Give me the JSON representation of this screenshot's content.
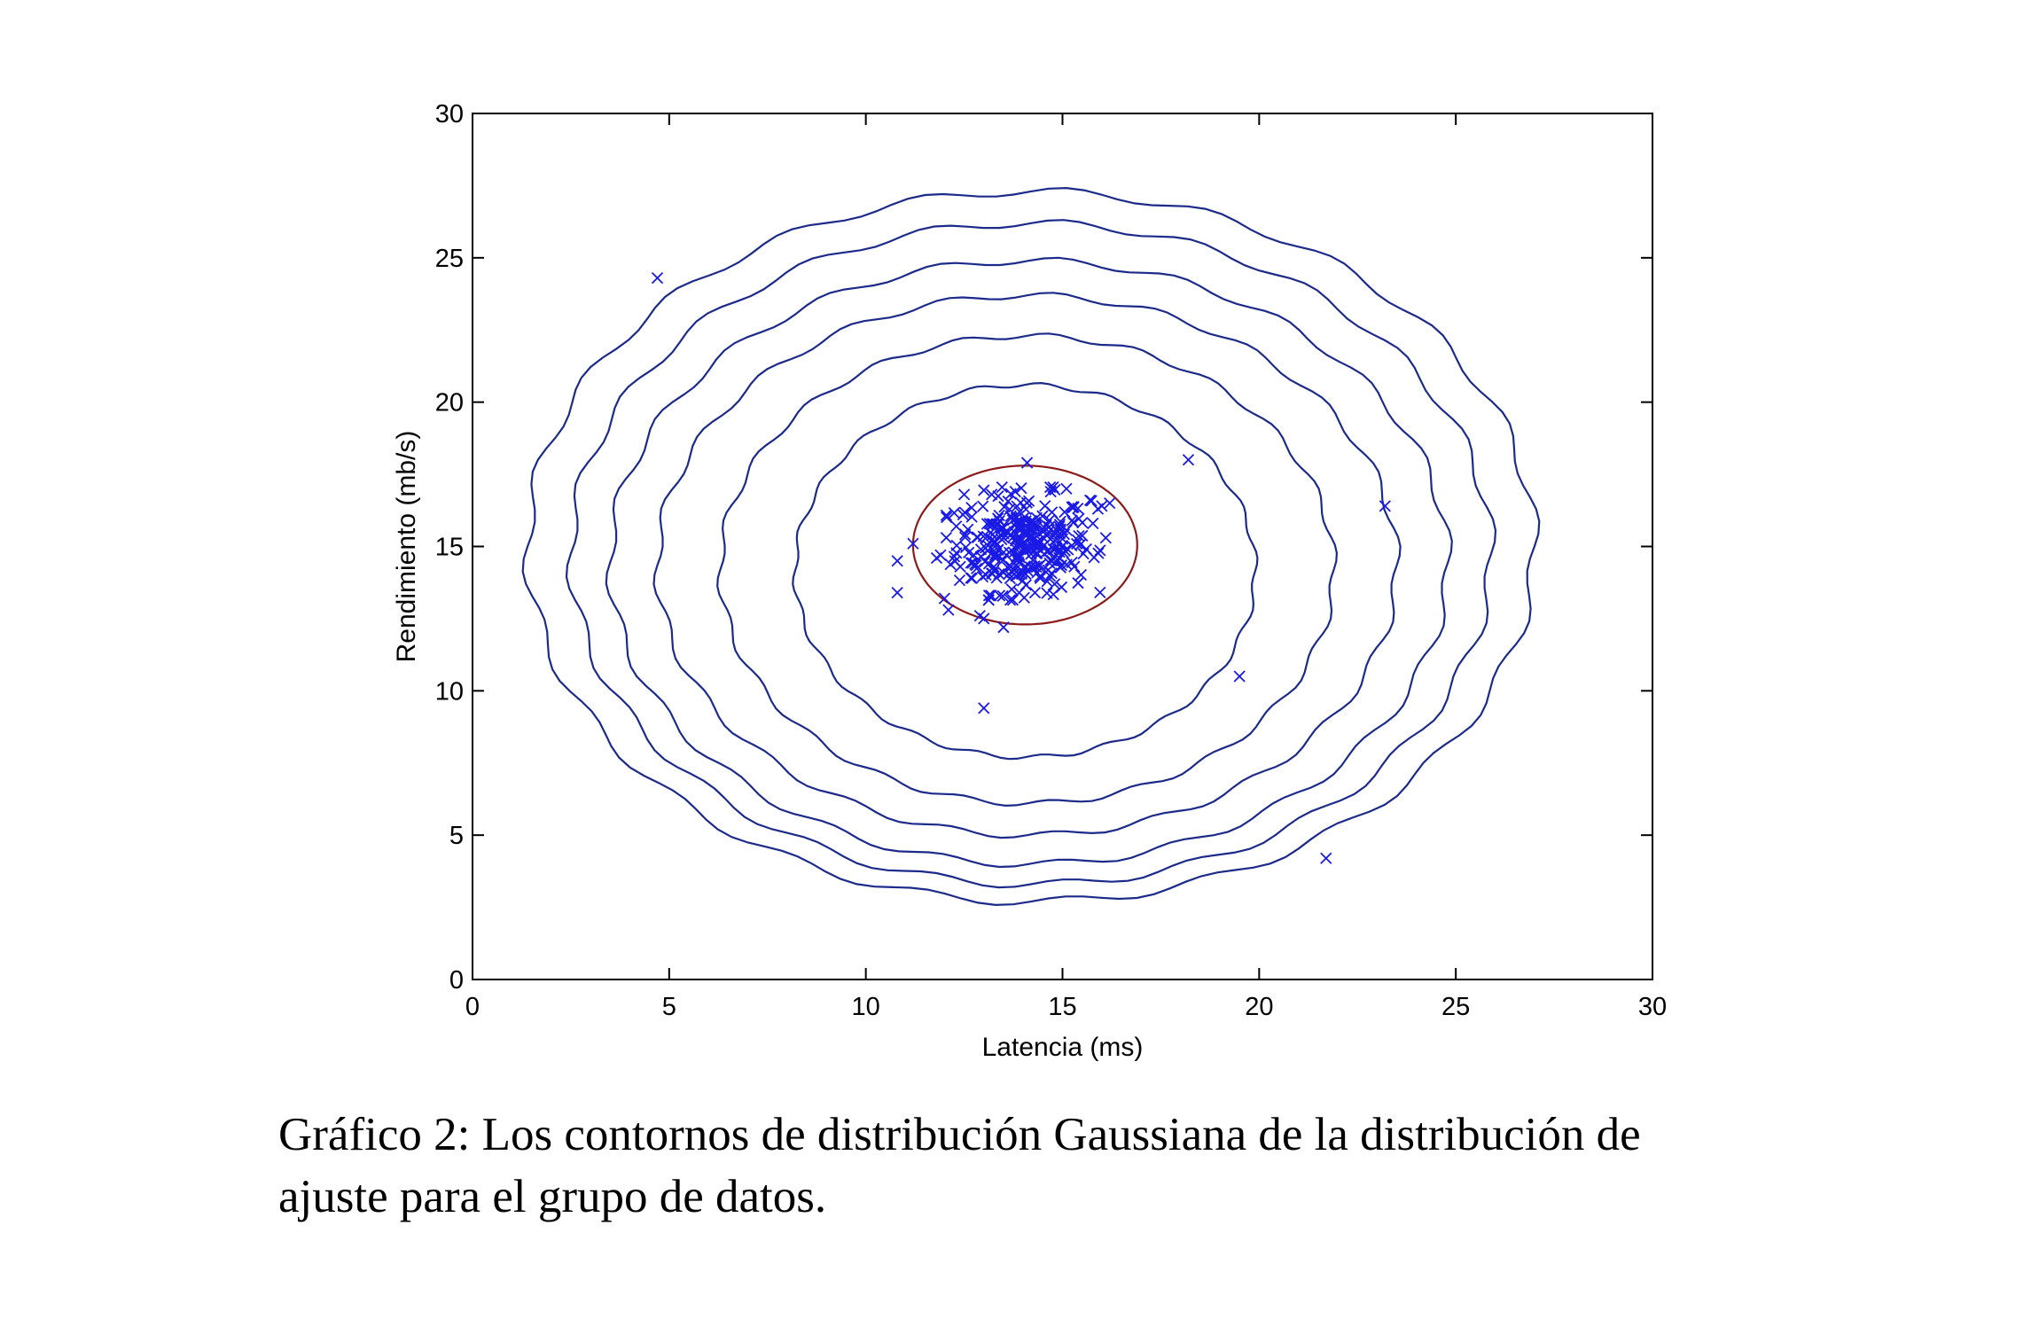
{
  "chart_data": {
    "type": "scatter",
    "title": "",
    "xlabel": "Latencia (ms)",
    "ylabel": "Rendimiento (mb/s)",
    "xlim": [
      0,
      30
    ],
    "ylim": [
      0,
      30
    ],
    "xticks": [
      0,
      5,
      10,
      15,
      20,
      25,
      30
    ],
    "yticks": [
      0,
      5,
      10,
      15,
      20,
      25,
      30
    ],
    "grid": false,
    "legend": "none",
    "colors": {
      "points": "#1a1ae6",
      "contours": "#1c2a8a",
      "threshold_contour": "#8b1a1a",
      "axes": "#000000"
    },
    "gaussian_fit": {
      "mean": [
        14.1,
        15.0
      ],
      "std": [
        1.35,
        1.35
      ]
    },
    "contours": [
      {
        "x_range": [
          11.2,
          16.9
        ],
        "y_range": [
          12.3,
          17.8
        ],
        "color": "threshold"
      },
      {
        "x_range": [
          8.2,
          19.9
        ],
        "y_range": [
          7.7,
          20.6
        ]
      },
      {
        "x_range": [
          6.3,
          21.9
        ],
        "y_range": [
          6.1,
          22.3
        ]
      },
      {
        "x_range": [
          4.7,
          23.5
        ],
        "y_range": [
          5.0,
          23.7
        ]
      },
      {
        "x_range": [
          3.5,
          24.8
        ],
        "y_range": [
          4.0,
          24.9
        ]
      },
      {
        "x_range": [
          2.5,
          25.9
        ],
        "y_range": [
          3.3,
          26.2
        ]
      },
      {
        "x_range": [
          1.4,
          27.0
        ],
        "y_range": [
          2.7,
          27.3
        ]
      }
    ],
    "cluster": {
      "center": [
        14.0,
        15.1
      ],
      "spread": [
        0.85,
        0.85
      ],
      "count": 290
    },
    "series": [
      {
        "marker": "x",
        "points": [
          [
            4.7,
            24.3
          ],
          [
            18.2,
            18.0
          ],
          [
            23.2,
            16.4
          ],
          [
            19.5,
            10.5
          ],
          [
            21.7,
            4.2
          ],
          [
            13.0,
            9.4
          ],
          [
            10.8,
            14.5
          ],
          [
            10.8,
            13.4
          ],
          [
            11.2,
            15.1
          ],
          [
            13.5,
            12.2
          ],
          [
            12.9,
            12.6
          ],
          [
            14.1,
            17.9
          ],
          [
            16.1,
            15.3
          ],
          [
            12.0,
            13.2
          ],
          [
            12.1,
            12.8
          ],
          [
            13.0,
            12.5
          ],
          [
            15.9,
            16.3
          ],
          [
            16.0,
            16.4
          ],
          [
            12.5,
            16.8
          ],
          [
            13.9,
            13.4
          ],
          [
            14.3,
            13.4
          ],
          [
            11.8,
            14.6
          ],
          [
            15.7,
            16.6
          ],
          [
            12.3,
            15.7
          ],
          [
            13.2,
            16.8
          ],
          [
            15.1,
            17.0
          ],
          [
            14.7,
            16.9
          ],
          [
            12.7,
            13.9
          ],
          [
            13.4,
            13.3
          ],
          [
            15.3,
            14.3
          ],
          [
            14.8,
            13.7
          ],
          [
            11.9,
            14.7
          ],
          [
            13.8,
            16.9
          ],
          [
            16.2,
            16.5
          ],
          [
            12.4,
            14.3
          ]
        ]
      }
    ]
  },
  "caption": {
    "line1": "Gráfico 2: Los contornos de distribución Gaussiana de la distribución de",
    "line2": "ajuste para el grupo de datos."
  }
}
